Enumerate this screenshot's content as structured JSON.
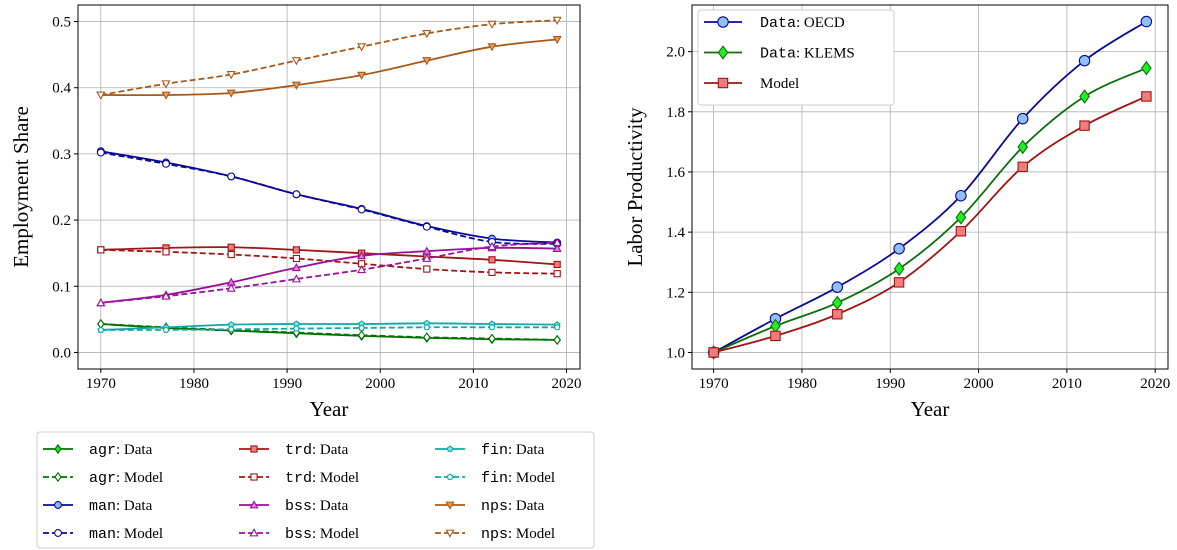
{
  "chart_data": [
    {
      "type": "line",
      "x_label": "Year",
      "y_label": "Employment Share",
      "x": [
        1970,
        1977,
        1984,
        1991,
        1998,
        2005,
        2012,
        2019
      ],
      "xlim": [
        1967.55,
        2021.45
      ],
      "xticks": [
        1970,
        1980,
        1990,
        2000,
        2010,
        2020
      ],
      "ylim": [
        -0.025,
        0.525
      ],
      "yticks": [
        {
          "value": 0,
          "label": "0.0"
        },
        0.1,
        0.2,
        0.3,
        0.4,
        0.5
      ],
      "grid": true,
      "legend": "below",
      "series": [
        {
          "name": "agr: Data",
          "color": "#007000",
          "marker_color": "#22dd22",
          "marker": "diamond",
          "dashed": false,
          "values": [
            0.043,
            0.037,
            0.033,
            0.029,
            0.025,
            0.022,
            0.02,
            0.019
          ]
        },
        {
          "name": "agr: Model",
          "color": "#007000",
          "marker_color": "#ffffff",
          "marker": "diamond",
          "dashed": true,
          "values": [
            0.043,
            0.038,
            0.034,
            0.03,
            0.026,
            0.023,
            0.021,
            0.019
          ]
        },
        {
          "name": "man: Data",
          "color": "#0a0a96",
          "marker_color": "#8fb5f5",
          "marker": "circle",
          "dashed": false,
          "values": [
            0.304,
            0.287,
            0.266,
            0.239,
            0.217,
            0.191,
            0.172,
            0.166
          ]
        },
        {
          "name": "man: Model",
          "color": "#0a0a96",
          "marker_color": "#ffffff",
          "marker": "circle",
          "dashed": true,
          "values": [
            0.302,
            0.285,
            0.266,
            0.239,
            0.216,
            0.19,
            0.167,
            0.164
          ]
        },
        {
          "name": "trd: Data",
          "color": "#a01414",
          "marker_color": "#f07d7d",
          "marker": "square",
          "dashed": false,
          "values": [
            0.155,
            0.158,
            0.159,
            0.155,
            0.15,
            0.145,
            0.14,
            0.133
          ]
        },
        {
          "name": "trd: Model",
          "color": "#a01414",
          "marker_color": "#ffffff",
          "marker": "square",
          "dashed": true,
          "values": [
            0.155,
            0.152,
            0.148,
            0.142,
            0.134,
            0.126,
            0.121,
            0.119
          ]
        },
        {
          "name": "bss: Data",
          "color": "#9a109a",
          "marker_color": "#e27ee2",
          "marker": "triangle-up",
          "dashed": false,
          "values": [
            0.075,
            0.087,
            0.106,
            0.128,
            0.146,
            0.153,
            0.158,
            0.157
          ]
        },
        {
          "name": "bss: Model",
          "color": "#9a109a",
          "marker_color": "#ffffff",
          "marker": "triangle-up",
          "dashed": true,
          "values": [
            0.075,
            0.085,
            0.097,
            0.111,
            0.125,
            0.142,
            0.16,
            0.166
          ]
        },
        {
          "name": "fin: Data",
          "color": "#10a8a8",
          "marker_color": "#7fe6e6",
          "marker": "pentagon",
          "dashed": false,
          "values": [
            0.034,
            0.038,
            0.042,
            0.043,
            0.043,
            0.044,
            0.043,
            0.042
          ]
        },
        {
          "name": "fin: Model",
          "color": "#10a8a8",
          "marker_color": "#ffffff",
          "marker": "pentagon",
          "dashed": true,
          "values": [
            0.034,
            0.034,
            0.035,
            0.036,
            0.037,
            0.038,
            0.038,
            0.038
          ]
        },
        {
          "name": "nps: Data",
          "color": "#a8581a",
          "marker_color": "#e0a060",
          "marker": "triangle-down",
          "dashed": false,
          "values": [
            0.389,
            0.389,
            0.392,
            0.404,
            0.419,
            0.441,
            0.462,
            0.473
          ]
        },
        {
          "name": "nps: Model",
          "color": "#a8581a",
          "marker_color": "#ffffff",
          "marker": "triangle-down",
          "dashed": true,
          "values": [
            0.389,
            0.406,
            0.42,
            0.441,
            0.462,
            0.482,
            0.496,
            0.502
          ]
        }
      ]
    },
    {
      "type": "line",
      "x_label": "Year",
      "y_label": "Labor Productivity",
      "x": [
        1970,
        1977,
        1984,
        1991,
        1998,
        2005,
        2012,
        2019
      ],
      "xlim": [
        1967.55,
        2021.45
      ],
      "xticks": [
        1970,
        1980,
        1990,
        2000,
        2010,
        2020
      ],
      "ylim": [
        0.945,
        2.155
      ],
      "yticks": [
        {
          "value": 1,
          "label": "1.0"
        },
        1.2,
        1.4,
        1.6,
        1.8,
        {
          "value": 2,
          "label": "2.0"
        }
      ],
      "grid": true,
      "legend": "upper left",
      "series": [
        {
          "name": "Data: OECD",
          "color": "#0a0a96",
          "marker_color": "#8fbff5",
          "marker": "circle",
          "dashed": false,
          "values": [
            1.0,
            1.112,
            1.217,
            1.345,
            1.521,
            1.777,
            1.97,
            2.1
          ]
        },
        {
          "name": "Data: KLEMS",
          "color": "#0a6e0a",
          "marker_color": "#22ee22",
          "marker": "diamond",
          "dashed": false,
          "values": [
            1.0,
            1.088,
            1.165,
            1.278,
            1.449,
            1.683,
            1.851,
            1.945
          ]
        },
        {
          "name": "Model",
          "color": "#a01414",
          "marker_color": "#f07d7d",
          "marker": "square",
          "dashed": false,
          "values": [
            1.0,
            1.055,
            1.127,
            1.233,
            1.403,
            1.617,
            1.754,
            1.851
          ]
        }
      ]
    }
  ]
}
